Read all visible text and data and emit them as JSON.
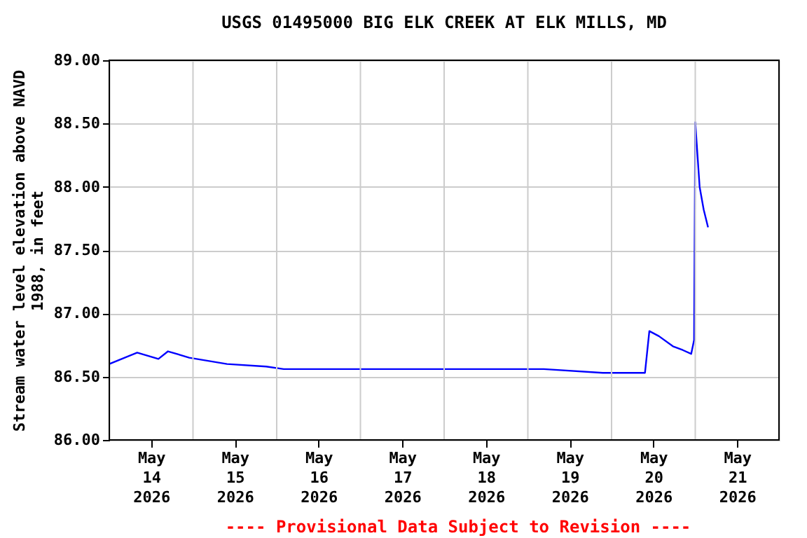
{
  "chart_data": {
    "type": "line",
    "title": "USGS 01495000 BIG ELK CREEK AT ELK MILLS, MD",
    "ylabel": "Stream water level elevation above NAVD 1988, in feet",
    "x": [
      "2026-05-14T00:00",
      "2026-05-14T08:00",
      "2026-05-14T14:05",
      "2026-05-14T16:50",
      "2026-05-14T22:55",
      "2026-05-15T09:45",
      "2026-05-15T21:00",
      "2026-05-16T02:00",
      "2026-05-19T04:35",
      "2026-05-19T21:30",
      "2026-05-20T09:35",
      "2026-05-20T10:50",
      "2026-05-20T13:35",
      "2026-05-20T17:35",
      "2026-05-20T20:25",
      "2026-05-20T22:50",
      "2026-05-20T23:40",
      "2026-05-21T00:00",
      "2026-05-21T00:25",
      "2026-05-21T01:15",
      "2026-05-21T02:25",
      "2026-05-21T03:40"
    ],
    "series": [
      {
        "color": "#0000ff",
        "values": [
          86.6,
          86.69,
          86.64,
          86.7,
          86.65,
          86.6,
          86.58,
          86.56,
          86.56,
          86.53,
          86.53,
          86.86,
          86.82,
          86.74,
          86.71,
          86.68,
          86.79,
          88.51,
          88.34,
          88.0,
          87.82,
          87.68
        ]
      }
    ],
    "xlim": [
      "2026-05-14T00:00",
      "2026-05-22T00:00"
    ],
    "xticks": [
      {
        "value": "2026-05-14T12:00",
        "label": "May 14 2026"
      },
      {
        "value": "2026-05-15T12:00",
        "label": "May 15 2026"
      },
      {
        "value": "2026-05-16T12:00",
        "label": "May 16 2026"
      },
      {
        "value": "2026-05-17T12:00",
        "label": "May 17 2026"
      },
      {
        "value": "2026-05-18T12:00",
        "label": "May 18 2026"
      },
      {
        "value": "2026-05-19T12:00",
        "label": "May 19 2026"
      },
      {
        "value": "2026-05-20T12:00",
        "label": "May 20 2026"
      },
      {
        "value": "2026-05-21T12:00",
        "label": "May 21 2026"
      },
      {
        "value": "2026-05-15T00:00",
        "label": null
      },
      {
        "value": "2026-05-16T00:00",
        "label": null
      },
      {
        "value": "2026-05-17T00:00",
        "label": null
      },
      {
        "value": "2026-05-18T00:00",
        "label": null
      },
      {
        "value": "2026-05-19T00:00",
        "label": null
      },
      {
        "value": "2026-05-20T00:00",
        "label": null
      },
      {
        "value": "2026-05-21T00:00",
        "label": null
      }
    ],
    "ylim": [
      86.0,
      89.0
    ],
    "yticks": [
      {
        "value": 86,
        "label": "86.00"
      },
      {
        "value": 86.5,
        "label": "86.50"
      },
      {
        "value": 87,
        "label": "87.00"
      },
      {
        "value": 87.5,
        "label": "87.50"
      },
      {
        "value": 88,
        "label": "88.00"
      },
      {
        "value": 88.5,
        "label": "88.50"
      },
      {
        "value": 89,
        "label": "89.00"
      }
    ],
    "grid": true,
    "annotations": [
      "---- Provisional Data Subject to Revision ----"
    ]
  }
}
